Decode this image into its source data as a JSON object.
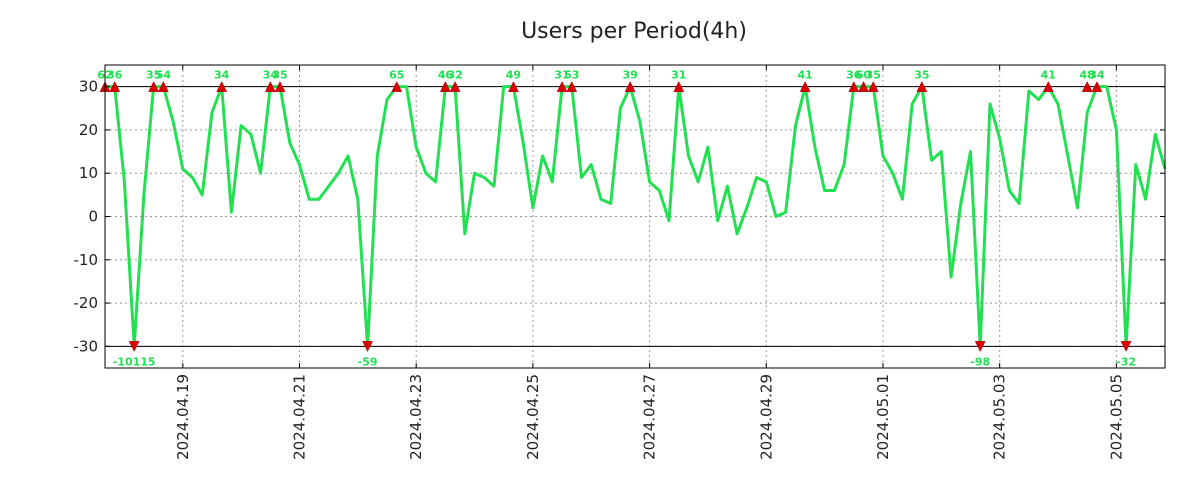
{
  "chart_data": {
    "type": "line",
    "title": "Users per Period(4h)",
    "xlabel": "",
    "ylabel": "",
    "ylim": [
      -35,
      35
    ],
    "clip_range": [
      -30,
      30
    ],
    "grid": true,
    "line_color": "#22e052",
    "marker_color": "#dd0000",
    "label_color": "#22e052",
    "y_ticks": [
      "-30",
      "-20",
      "-10",
      "0",
      "10",
      "20",
      "30"
    ],
    "x_tick_labels": [
      "2024.04.19",
      "2024.04.21",
      "2024.04.23",
      "2024.04.25",
      "2024.04.27",
      "2024.04.29",
      "2024.05.01",
      "2024.05.03",
      "2024.05.05"
    ],
    "x_tick_positions": [
      8,
      20,
      32,
      44,
      56,
      68,
      80,
      92,
      104
    ],
    "values": [
      30,
      30,
      8,
      -30,
      5,
      30,
      30,
      22,
      11,
      9,
      5,
      24,
      30,
      1,
      21,
      19,
      10,
      30,
      30,
      17,
      12,
      4,
      4,
      7,
      10,
      14,
      4,
      -30,
      14,
      27,
      30,
      30,
      16,
      10,
      8,
      30,
      30,
      -4,
      10,
      9,
      7,
      30,
      30,
      17,
      2,
      14,
      8,
      30,
      30,
      9,
      12,
      4,
      3,
      25,
      30,
      22,
      8,
      6,
      -1,
      30,
      14,
      8,
      16,
      -1,
      7,
      -4,
      2,
      9,
      8,
      0,
      1,
      21,
      30,
      16,
      6,
      6,
      12,
      30,
      30,
      30,
      14,
      10,
      4,
      26,
      30,
      13,
      15,
      -14,
      3,
      15,
      -30,
      26,
      18,
      6,
      3,
      29,
      27,
      30,
      26,
      14,
      2,
      24,
      30,
      30,
      20,
      -30,
      12,
      4,
      19,
      11
    ],
    "peaks": [
      {
        "i": 0,
        "label": "62"
      },
      {
        "i": 1,
        "label": "36"
      },
      {
        "i": 5,
        "label": "35"
      },
      {
        "i": 6,
        "label": "54"
      },
      {
        "i": 12,
        "label": "34"
      },
      {
        "i": 17,
        "label": "34"
      },
      {
        "i": 18,
        "label": "35"
      },
      {
        "i": 30,
        "label": "65"
      },
      {
        "i": 35,
        "label": "46"
      },
      {
        "i": 36,
        "label": "32"
      },
      {
        "i": 42,
        "label": "49"
      },
      {
        "i": 47,
        "label": "31"
      },
      {
        "i": 48,
        "label": "53"
      },
      {
        "i": 54,
        "label": "39"
      },
      {
        "i": 59,
        "label": "31"
      },
      {
        "i": 72,
        "label": "41"
      },
      {
        "i": 77,
        "label": "36"
      },
      {
        "i": 78,
        "label": "60"
      },
      {
        "i": 79,
        "label": "35"
      },
      {
        "i": 84,
        "label": "35"
      },
      {
        "i": 97,
        "label": "41"
      },
      {
        "i": 101,
        "label": "48"
      },
      {
        "i": 102,
        "label": "34"
      }
    ],
    "troughs": [
      {
        "i": 3,
        "label": "-10115"
      },
      {
        "i": 27,
        "label": "-59"
      },
      {
        "i": 90,
        "label": "-98"
      },
      {
        "i": 105,
        "label": "-32"
      }
    ]
  }
}
